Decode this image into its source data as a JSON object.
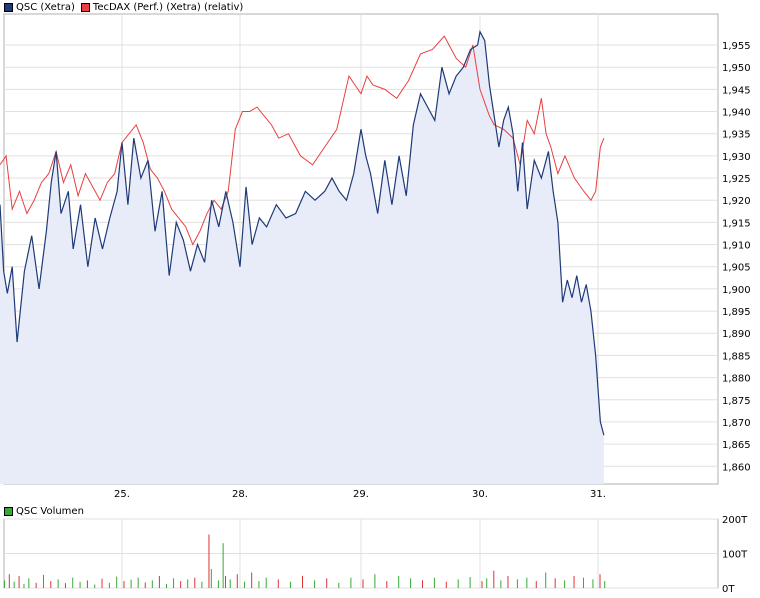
{
  "chart_data": [
    {
      "type": "line",
      "legend": [
        {
          "name": "QSC (Xetra)",
          "color": "#1f3a78"
        },
        {
          "name": "TecDAX (Perf.) (Xetra) (relativ)",
          "color": "#e84040"
        }
      ],
      "x_ticks": [
        "25.",
        "28.",
        "29.",
        "30.",
        "31."
      ],
      "y_ticks": [
        "1,955",
        "1,950",
        "1,945",
        "1,940",
        "1,935",
        "1,930",
        "1,925",
        "1,920",
        "1,915",
        "1,910",
        "1,905",
        "1,900",
        "1,895",
        "1,890",
        "1,885",
        "1,880",
        "1,875",
        "1,870",
        "1,865",
        "1,860"
      ],
      "ylim": [
        1.856,
        1.962
      ],
      "grid": true,
      "legend_position": "top-left",
      "series": [
        {
          "name": "QSC (Xetra)",
          "color": "#1f3a78",
          "fill": "#e8ecf8",
          "x": [
            0,
            0.03,
            0.06,
            0.1,
            0.14,
            0.2,
            0.26,
            0.32,
            0.38,
            0.42,
            0.46,
            0.5,
            0.56,
            0.6,
            0.66,
            0.72,
            0.78,
            0.84,
            0.9,
            0.96,
            1.0,
            1.05,
            1.1,
            1.16,
            1.22,
            1.28,
            1.34,
            1.4,
            1.46,
            1.52,
            1.58,
            1.64,
            1.7,
            1.76,
            1.82,
            1.88,
            1.94,
            2.0,
            2.05,
            2.1,
            2.16,
            2.22,
            2.3,
            2.38,
            2.46,
            2.54,
            2.62,
            2.7,
            2.76,
            2.82,
            2.88,
            2.94,
            3.0,
            3.04,
            3.08,
            3.14,
            3.2,
            3.26,
            3.32,
            3.38,
            3.44,
            3.5,
            3.56,
            3.62,
            3.68,
            3.74,
            3.8,
            3.86,
            3.92,
            3.98,
            4.0,
            4.04,
            4.08,
            4.12,
            4.16,
            4.2,
            4.24,
            4.28,
            4.32,
            4.36,
            4.4,
            4.46,
            4.52,
            4.58,
            4.62,
            4.66,
            4.7,
            4.74,
            4.78,
            4.82,
            4.86,
            4.9,
            4.94,
            4.98,
            5.02,
            5.05
          ],
          "values": [
            1.919,
            1.904,
            1.899,
            1.905,
            1.888,
            1.904,
            1.912,
            1.9,
            1.913,
            1.924,
            1.931,
            1.917,
            1.922,
            1.909,
            1.919,
            1.905,
            1.916,
            1.909,
            1.916,
            1.922,
            1.933,
            1.919,
            1.934,
            1.925,
            1.929,
            1.913,
            1.922,
            1.903,
            1.915,
            1.911,
            1.904,
            1.91,
            1.906,
            1.92,
            1.914,
            1.922,
            1.915,
            1.905,
            1.923,
            1.91,
            1.916,
            1.914,
            1.919,
            1.916,
            1.917,
            1.922,
            1.92,
            1.922,
            1.925,
            1.922,
            1.92,
            1.926,
            1.936,
            1.93,
            1.926,
            1.917,
            1.929,
            1.919,
            1.93,
            1.921,
            1.937,
            1.944,
            1.941,
            1.938,
            1.95,
            1.944,
            1.948,
            1.95,
            1.954,
            1.955,
            1.958,
            1.956,
            1.946,
            1.939,
            1.932,
            1.938,
            1.941,
            1.935,
            1.922,
            1.933,
            1.918,
            1.929,
            1.925,
            1.931,
            1.922,
            1.915,
            1.897,
            1.902,
            1.898,
            1.903,
            1.897,
            1.901,
            1.895,
            1.885,
            1.87,
            1.867
          ]
        },
        {
          "name": "TecDAX (Perf.) (Xetra) (relativ)",
          "color": "#e84040",
          "x": [
            0,
            0.05,
            0.1,
            0.16,
            0.22,
            0.28,
            0.34,
            0.4,
            0.46,
            0.52,
            0.58,
            0.64,
            0.7,
            0.76,
            0.82,
            0.88,
            0.94,
            1.0,
            1.06,
            1.12,
            1.18,
            1.24,
            1.3,
            1.36,
            1.42,
            1.48,
            1.54,
            1.6,
            1.66,
            1.72,
            1.78,
            1.84,
            1.9,
            1.96,
            2.02,
            2.08,
            2.14,
            2.2,
            2.26,
            2.32,
            2.4,
            2.5,
            2.6,
            2.7,
            2.8,
            2.9,
            3.0,
            3.05,
            3.1,
            3.2,
            3.3,
            3.4,
            3.5,
            3.6,
            3.7,
            3.8,
            3.88,
            3.94,
            4.0,
            4.04,
            4.08,
            4.12,
            4.2,
            4.28,
            4.34,
            4.4,
            4.46,
            4.52,
            4.56,
            4.6,
            4.66,
            4.72,
            4.8,
            4.88,
            4.94,
            4.98,
            5.02,
            5.05
          ],
          "values": [
            1.928,
            1.93,
            1.918,
            1.922,
            1.917,
            1.92,
            1.924,
            1.926,
            1.931,
            1.924,
            1.928,
            1.921,
            1.926,
            1.923,
            1.92,
            1.924,
            1.926,
            1.933,
            1.935,
            1.937,
            1.933,
            1.927,
            1.925,
            1.922,
            1.918,
            1.916,
            1.914,
            1.91,
            1.913,
            1.917,
            1.92,
            1.918,
            1.922,
            1.936,
            1.94,
            1.94,
            1.941,
            1.939,
            1.937,
            1.934,
            1.935,
            1.93,
            1.928,
            1.932,
            1.936,
            1.948,
            1.944,
            1.948,
            1.946,
            1.945,
            1.943,
            1.947,
            1.953,
            1.954,
            1.957,
            1.952,
            1.95,
            1.955,
            1.945,
            1.942,
            1.939,
            1.937,
            1.936,
            1.934,
            1.928,
            1.938,
            1.935,
            1.943,
            1.935,
            1.932,
            1.926,
            1.93,
            1.925,
            1.922,
            1.92,
            1.922,
            1.932,
            1.934
          ]
        }
      ]
    },
    {
      "type": "bar",
      "legend": [
        {
          "name": "QSC Volumen",
          "color": "#33aa33"
        }
      ],
      "x_ticks": [],
      "y_ticks": [
        "200T",
        "100T",
        "0T"
      ],
      "ylim": [
        0,
        200
      ],
      "grid": true,
      "legend_position": "top-left",
      "series": [
        {
          "name": "QSC Volumen",
          "colors": {
            "up": "#33aa33",
            "down": "#dd3333"
          },
          "x": [
            0.02,
            0.06,
            0.1,
            0.14,
            0.18,
            0.22,
            0.28,
            0.34,
            0.4,
            0.46,
            0.52,
            0.58,
            0.64,
            0.7,
            0.76,
            0.82,
            0.88,
            0.94,
            1.0,
            1.06,
            1.12,
            1.18,
            1.24,
            1.3,
            1.36,
            1.42,
            1.48,
            1.54,
            1.6,
            1.66,
            1.72,
            1.74,
            1.8,
            1.84,
            1.86,
            1.9,
            1.96,
            2.02,
            2.08,
            2.14,
            2.2,
            2.3,
            2.4,
            2.5,
            2.6,
            2.7,
            2.8,
            2.9,
            3.0,
            3.1,
            3.2,
            3.3,
            3.4,
            3.5,
            3.6,
            3.7,
            3.8,
            3.9,
            4.0,
            4.04,
            4.1,
            4.16,
            4.22,
            4.3,
            4.38,
            4.46,
            4.54,
            4.62,
            4.7,
            4.78,
            4.86,
            4.94,
            5.0,
            5.04
          ],
          "values": [
            22,
            40,
            18,
            35,
            12,
            28,
            15,
            38,
            20,
            25,
            14,
            30,
            18,
            22,
            10,
            27,
            15,
            33,
            20,
            24,
            30,
            16,
            22,
            35,
            12,
            28,
            20,
            25,
            30,
            18,
            155,
            55,
            22,
            130,
            35,
            25,
            40,
            18,
            45,
            20,
            30,
            25,
            18,
            35,
            22,
            28,
            15,
            30,
            25,
            40,
            20,
            35,
            28,
            22,
            30,
            18,
            25,
            32,
            20,
            28,
            50,
            22,
            35,
            25,
            30,
            20,
            45,
            28,
            22,
            35,
            30,
            25,
            40,
            20
          ],
          "direction": [
            "u",
            "d",
            "u",
            "d",
            "u",
            "u",
            "d",
            "u",
            "d",
            "u",
            "d",
            "u",
            "u",
            "d",
            "u",
            "d",
            "u",
            "u",
            "d",
            "u",
            "u",
            "d",
            "u",
            "d",
            "u",
            "u",
            "d",
            "u",
            "d",
            "u",
            "d",
            "u",
            "u",
            "u",
            "d",
            "u",
            "d",
            "u",
            "d",
            "u",
            "u",
            "d",
            "u",
            "d",
            "u",
            "d",
            "u",
            "u",
            "d",
            "u",
            "d",
            "u",
            "u",
            "d",
            "u",
            "d",
            "u",
            "u",
            "d",
            "u",
            "d",
            "u",
            "d",
            "u",
            "u",
            "d",
            "u",
            "d",
            "u",
            "d",
            "u",
            "u",
            "d",
            "u"
          ]
        }
      ]
    }
  ]
}
